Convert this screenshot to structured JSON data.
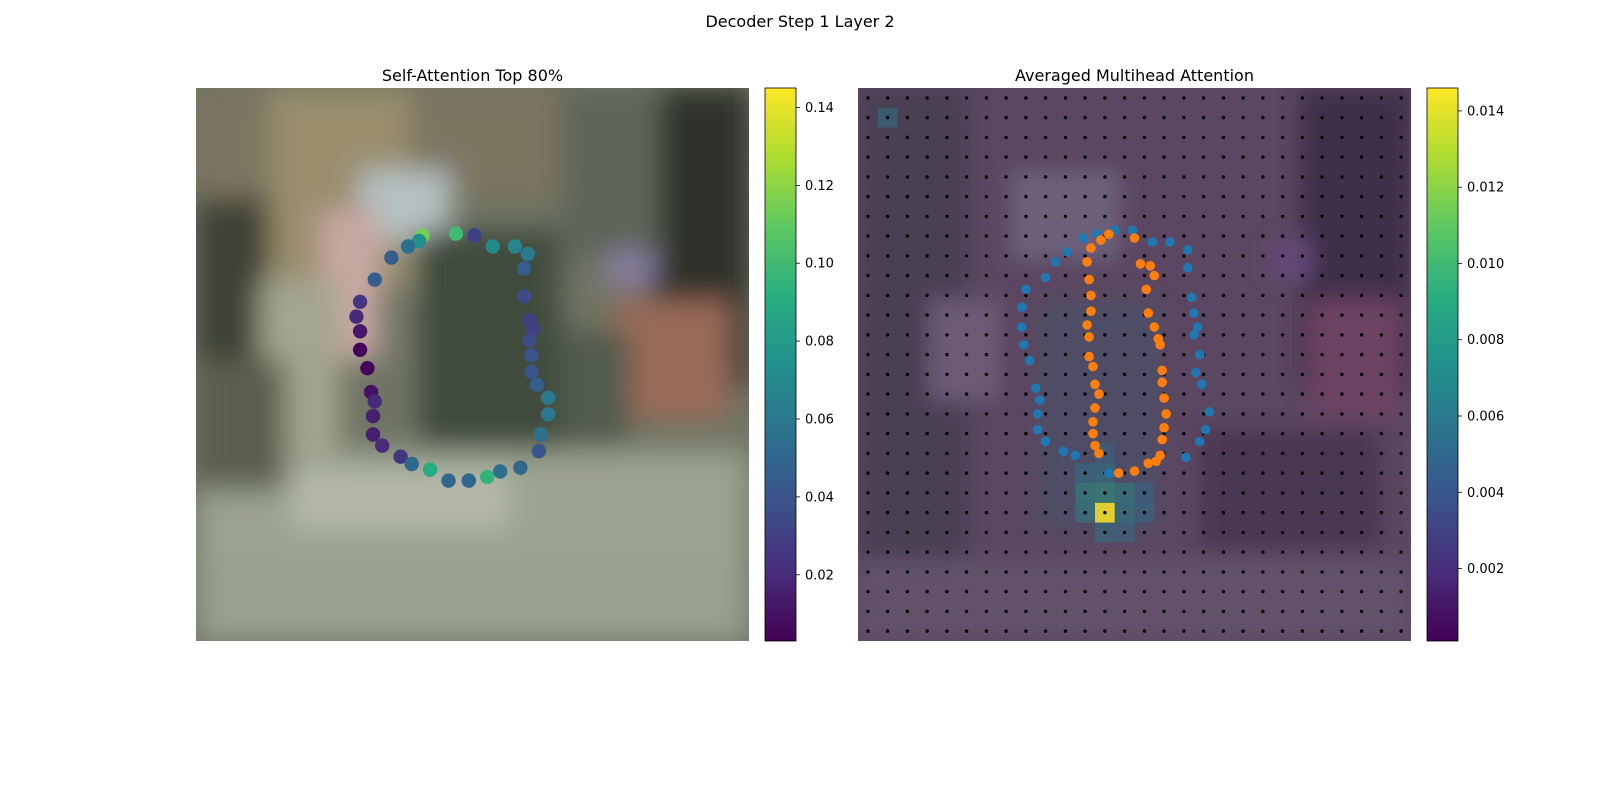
{
  "figure": {
    "suptitle": "Decoder Step 1 Layer 2"
  },
  "chart_data": [
    {
      "type": "scatter",
      "title": "Self-Attention Top 80%",
      "background": "blurred street scene photograph",
      "xlim": [
        0,
        30
      ],
      "ylim": [
        0,
        30
      ],
      "colorbar": {
        "min": 0.003,
        "max": 0.145,
        "ticks": [
          0.02,
          0.04,
          0.06,
          0.08,
          0.1,
          0.12,
          0.14
        ],
        "tick_labels": [
          "0.02",
          "0.04",
          "0.06",
          "0.08",
          "0.10",
          "0.12",
          "0.14"
        ],
        "colormap": "viridis"
      },
      "points": [
        {
          "x": 14.1,
          "y": 22.1,
          "v": 0.1
        },
        {
          "x": 12.3,
          "y": 22.0,
          "v": 0.115
        },
        {
          "x": 15.1,
          "y": 22.0,
          "v": 0.03
        },
        {
          "x": 12.1,
          "y": 21.7,
          "v": 0.073
        },
        {
          "x": 11.5,
          "y": 21.4,
          "v": 0.055
        },
        {
          "x": 16.1,
          "y": 21.4,
          "v": 0.07
        },
        {
          "x": 17.3,
          "y": 21.4,
          "v": 0.068
        },
        {
          "x": 18.0,
          "y": 21.0,
          "v": 0.06
        },
        {
          "x": 10.6,
          "y": 20.8,
          "v": 0.045
        },
        {
          "x": 17.8,
          "y": 20.2,
          "v": 0.045
        },
        {
          "x": 9.7,
          "y": 19.6,
          "v": 0.045
        },
        {
          "x": 17.8,
          "y": 18.7,
          "v": 0.035
        },
        {
          "x": 8.9,
          "y": 18.4,
          "v": 0.025
        },
        {
          "x": 8.7,
          "y": 17.6,
          "v": 0.02
        },
        {
          "x": 18.1,
          "y": 17.4,
          "v": 0.03
        },
        {
          "x": 18.3,
          "y": 16.9,
          "v": 0.03
        },
        {
          "x": 8.9,
          "y": 16.8,
          "v": 0.012
        },
        {
          "x": 18.1,
          "y": 16.3,
          "v": 0.035
        },
        {
          "x": 8.9,
          "y": 15.8,
          "v": 0.005
        },
        {
          "x": 18.2,
          "y": 15.5,
          "v": 0.04
        },
        {
          "x": 9.3,
          "y": 14.8,
          "v": 0.005
        },
        {
          "x": 18.2,
          "y": 14.6,
          "v": 0.04
        },
        {
          "x": 18.5,
          "y": 13.9,
          "v": 0.045
        },
        {
          "x": 9.5,
          "y": 13.5,
          "v": 0.01
        },
        {
          "x": 9.7,
          "y": 13.0,
          "v": 0.02
        },
        {
          "x": 19.1,
          "y": 13.2,
          "v": 0.06
        },
        {
          "x": 9.6,
          "y": 12.2,
          "v": 0.015
        },
        {
          "x": 19.1,
          "y": 12.3,
          "v": 0.06
        },
        {
          "x": 9.6,
          "y": 11.2,
          "v": 0.015
        },
        {
          "x": 18.7,
          "y": 11.2,
          "v": 0.055
        },
        {
          "x": 10.1,
          "y": 10.6,
          "v": 0.02
        },
        {
          "x": 18.6,
          "y": 10.3,
          "v": 0.04
        },
        {
          "x": 11.1,
          "y": 10.0,
          "v": 0.025
        },
        {
          "x": 11.7,
          "y": 9.6,
          "v": 0.05
        },
        {
          "x": 12.7,
          "y": 9.3,
          "v": 0.09
        },
        {
          "x": 17.6,
          "y": 9.4,
          "v": 0.05
        },
        {
          "x": 16.5,
          "y": 9.2,
          "v": 0.055
        },
        {
          "x": 15.8,
          "y": 8.9,
          "v": 0.095
        },
        {
          "x": 13.7,
          "y": 8.7,
          "v": 0.05
        },
        {
          "x": 14.8,
          "y": 8.7,
          "v": 0.05
        }
      ]
    },
    {
      "type": "heatmap",
      "title": "Averaged Multihead Attention",
      "background": "blurred street scene photograph",
      "grid": {
        "rows": 28,
        "cols": 28
      },
      "colorbar": {
        "min": 0.0001,
        "max": 0.0146,
        "ticks": [
          0.002,
          0.004,
          0.006,
          0.008,
          0.01,
          0.012,
          0.014
        ],
        "tick_labels": [
          "0.002",
          "0.004",
          "0.006",
          "0.008",
          "0.010",
          "0.012",
          "0.014"
        ],
        "colormap": "viridis"
      },
      "hotspots": [
        {
          "row": 21,
          "col": 12,
          "v": 0.0145
        },
        {
          "row": 20,
          "col": 12,
          "v": 0.0085
        },
        {
          "row": 20,
          "col": 11,
          "v": 0.0078
        },
        {
          "row": 20,
          "col": 13,
          "v": 0.0072
        },
        {
          "row": 21,
          "col": 11,
          "v": 0.007
        },
        {
          "row": 21,
          "col": 13,
          "v": 0.0068
        },
        {
          "row": 19,
          "col": 12,
          "v": 0.0062
        },
        {
          "row": 19,
          "col": 11,
          "v": 0.0058
        },
        {
          "row": 22,
          "col": 12,
          "v": 0.0062
        },
        {
          "row": 22,
          "col": 13,
          "v": 0.0055
        },
        {
          "row": 21,
          "col": 14,
          "v": 0.0055
        },
        {
          "row": 20,
          "col": 14,
          "v": 0.0052
        },
        {
          "row": 18,
          "col": 12,
          "v": 0.005
        },
        {
          "row": 1,
          "col": 1,
          "v": 0.006
        }
      ],
      "series": [
        {
          "name": "",
          "color": "#1f77b4",
          "points": [
            [
              11.4,
              7.6
            ],
            [
              12.1,
              7.4
            ],
            [
              13.0,
              7.2
            ],
            [
              13.9,
              7.2
            ],
            [
              14.9,
              7.8
            ],
            [
              15.8,
              7.8
            ],
            [
              16.7,
              8.2
            ],
            [
              10.6,
              8.3
            ],
            [
              10.0,
              8.8
            ],
            [
              16.7,
              9.1
            ],
            [
              9.5,
              9.6
            ],
            [
              8.5,
              10.2
            ],
            [
              16.9,
              10.6
            ],
            [
              8.3,
              11.1
            ],
            [
              17.0,
              11.4
            ],
            [
              17.2,
              12.1
            ],
            [
              8.3,
              12.1
            ],
            [
              17.0,
              12.5
            ],
            [
              8.4,
              13.0
            ],
            [
              8.7,
              13.8
            ],
            [
              17.3,
              13.5
            ],
            [
              17.1,
              14.4
            ],
            [
              17.4,
              15.0
            ],
            [
              9.0,
              15.2
            ],
            [
              9.2,
              15.8
            ],
            [
              17.8,
              16.4
            ],
            [
              9.1,
              16.5
            ],
            [
              17.6,
              17.3
            ],
            [
              9.1,
              17.3
            ],
            [
              17.3,
              17.9
            ],
            [
              9.5,
              17.9
            ],
            [
              10.4,
              18.4
            ],
            [
              11.0,
              18.6
            ],
            [
              16.6,
              18.7
            ],
            [
              12.7,
              19.5
            ]
          ]
        },
        {
          "name": "",
          "color": "#ff7f0e",
          "points": [
            [
              12.7,
              7.4
            ],
            [
              12.3,
              7.7
            ],
            [
              11.8,
              8.1
            ],
            [
              14.0,
              7.6
            ],
            [
              11.6,
              8.8
            ],
            [
              14.3,
              8.9
            ],
            [
              14.8,
              9.0
            ],
            [
              15.0,
              9.5
            ],
            [
              11.7,
              9.7
            ],
            [
              14.6,
              10.2
            ],
            [
              11.8,
              10.5
            ],
            [
              11.8,
              11.3
            ],
            [
              14.7,
              11.4
            ],
            [
              11.6,
              12.0
            ],
            [
              15.0,
              12.1
            ],
            [
              11.7,
              12.6
            ],
            [
              15.2,
              12.7
            ],
            [
              15.3,
              13.0
            ],
            [
              11.7,
              13.6
            ],
            [
              11.9,
              14.1
            ],
            [
              15.4,
              14.3
            ],
            [
              15.4,
              14.9
            ],
            [
              12.0,
              15.0
            ],
            [
              12.2,
              15.5
            ],
            [
              15.5,
              15.7
            ],
            [
              12.0,
              16.2
            ],
            [
              15.6,
              16.5
            ],
            [
              11.9,
              16.9
            ],
            [
              15.5,
              17.2
            ],
            [
              11.9,
              17.5
            ],
            [
              15.4,
              17.8
            ],
            [
              12.0,
              18.1
            ],
            [
              12.2,
              18.5
            ],
            [
              15.3,
              18.6
            ],
            [
              15.1,
              18.9
            ],
            [
              14.7,
              19.0
            ],
            [
              14.0,
              19.4
            ],
            [
              13.2,
              19.5
            ]
          ]
        }
      ]
    }
  ]
}
